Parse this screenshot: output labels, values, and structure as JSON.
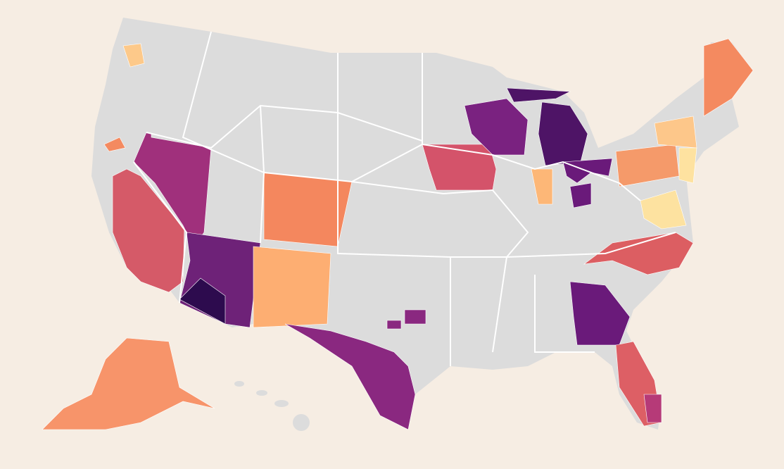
{
  "map": {
    "land_color": "#dcdcdc",
    "background": "#f6ede3",
    "border_color": "#ffffff",
    "regions": [
      {
        "color": "#fdc98a"
      },
      {
        "color": "#f48a60"
      },
      {
        "color": "#a0307c"
      },
      {
        "color": "#d55a68"
      },
      {
        "color": "#6e2278"
      },
      {
        "color": "#2d0b4e"
      },
      {
        "color": "#f4875e"
      },
      {
        "color": "#fdae72"
      },
      {
        "color": "#8a2880"
      },
      {
        "color": "#d4536a"
      },
      {
        "color": "#7a2280"
      },
      {
        "color": "#4e1466"
      },
      {
        "color": "#4e1466"
      },
      {
        "color": "#6a1a7a"
      },
      {
        "color": "#6a1a7a"
      },
      {
        "color": "#fdb777"
      },
      {
        "color": "#f59a6a"
      },
      {
        "color": "#fdc78a"
      },
      {
        "color": "#fee2a0"
      },
      {
        "color": "#fde2a0"
      },
      {
        "color": "#dc5e62"
      },
      {
        "color": "#6a1a7a"
      },
      {
        "color": "#dd5f65"
      },
      {
        "color": "#b63a78"
      },
      {
        "color": "#f48a60"
      },
      {
        "color": "#f7946a"
      },
      {
        "color": "#8a2880"
      },
      {
        "color": "#8a2880"
      }
    ]
  }
}
